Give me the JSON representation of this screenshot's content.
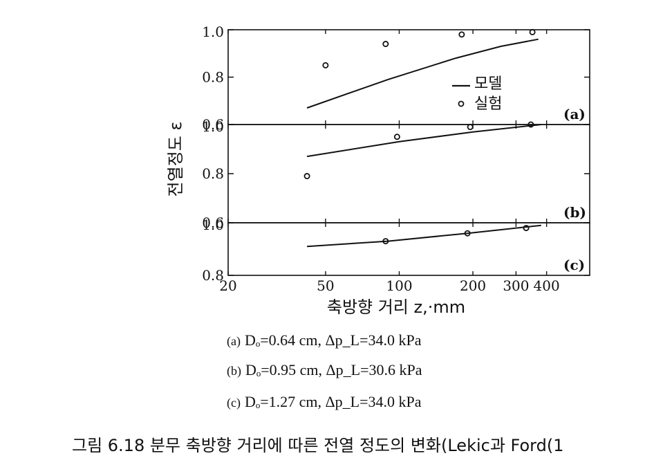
{
  "chart_data": {
    "type": "scatter",
    "ylabel": "전열정도 ε",
    "xlabel": "축방향 거리 z,·mm",
    "xscale": "log",
    "xlim": [
      20,
      600
    ],
    "xticks": [
      "20",
      "50",
      "100",
      "200",
      "300",
      "400"
    ],
    "legend": {
      "placement": "inside-right",
      "entries": [
        "모델",
        "실험"
      ]
    },
    "panels": [
      {
        "label": "(a)",
        "ylim": [
          0.6,
          1.0
        ],
        "yticks": [
          "1.0",
          "0.8",
          "0.6"
        ],
        "series": [
          {
            "name": "모델",
            "kind": "line",
            "x": [
              42,
              90,
              170,
              260,
              370
            ],
            "y": [
              0.67,
              0.79,
              0.88,
              0.93,
              0.96
            ]
          },
          {
            "name": "실험",
            "kind": "points",
            "x": [
              50,
              88,
              180,
              350
            ],
            "y": [
              0.85,
              0.94,
              0.98,
              0.99
            ]
          }
        ]
      },
      {
        "label": "(b)",
        "ylim": [
          0.6,
          1.0
        ],
        "yticks": [
          "1.0",
          "0.8",
          "0.6"
        ],
        "series": [
          {
            "name": "모델",
            "kind": "line",
            "x": [
              42,
              100,
              200,
              380
            ],
            "y": [
              0.87,
              0.93,
              0.97,
              1.0
            ]
          },
          {
            "name": "실험",
            "kind": "points",
            "x": [
              42,
              98,
              195,
              345
            ],
            "y": [
              0.79,
              0.95,
              0.99,
              1.0
            ]
          }
        ]
      },
      {
        "label": "(c)",
        "ylim": [
          0.8,
          1.0
        ],
        "yticks": [
          "1.0",
          "0.8"
        ],
        "series": [
          {
            "name": "모델",
            "kind": "line",
            "x": [
              42,
              90,
              190,
              380
            ],
            "y": [
              0.91,
              0.93,
              0.96,
              0.99
            ]
          },
          {
            "name": "실험",
            "kind": "points",
            "x": [
              88,
              190,
              330
            ],
            "y": [
              0.93,
              0.96,
              0.98
            ]
          }
        ]
      }
    ]
  },
  "conditions": [
    {
      "tag": "(a)",
      "text": "Dₒ=0.64 cm,  Δp_L=34.0 kPa"
    },
    {
      "tag": "(b)",
      "text": "Dₒ=0.95 cm,  Δp_L=30.6 kPa"
    },
    {
      "tag": "(c)",
      "text": "Dₒ=1.27 cm,  Δp_L=34.0 kPa"
    }
  ],
  "caption": "그림 6.18  분무 축방향 거리에 따른 전열 정도의 변화(Lekic과 Ford(1"
}
